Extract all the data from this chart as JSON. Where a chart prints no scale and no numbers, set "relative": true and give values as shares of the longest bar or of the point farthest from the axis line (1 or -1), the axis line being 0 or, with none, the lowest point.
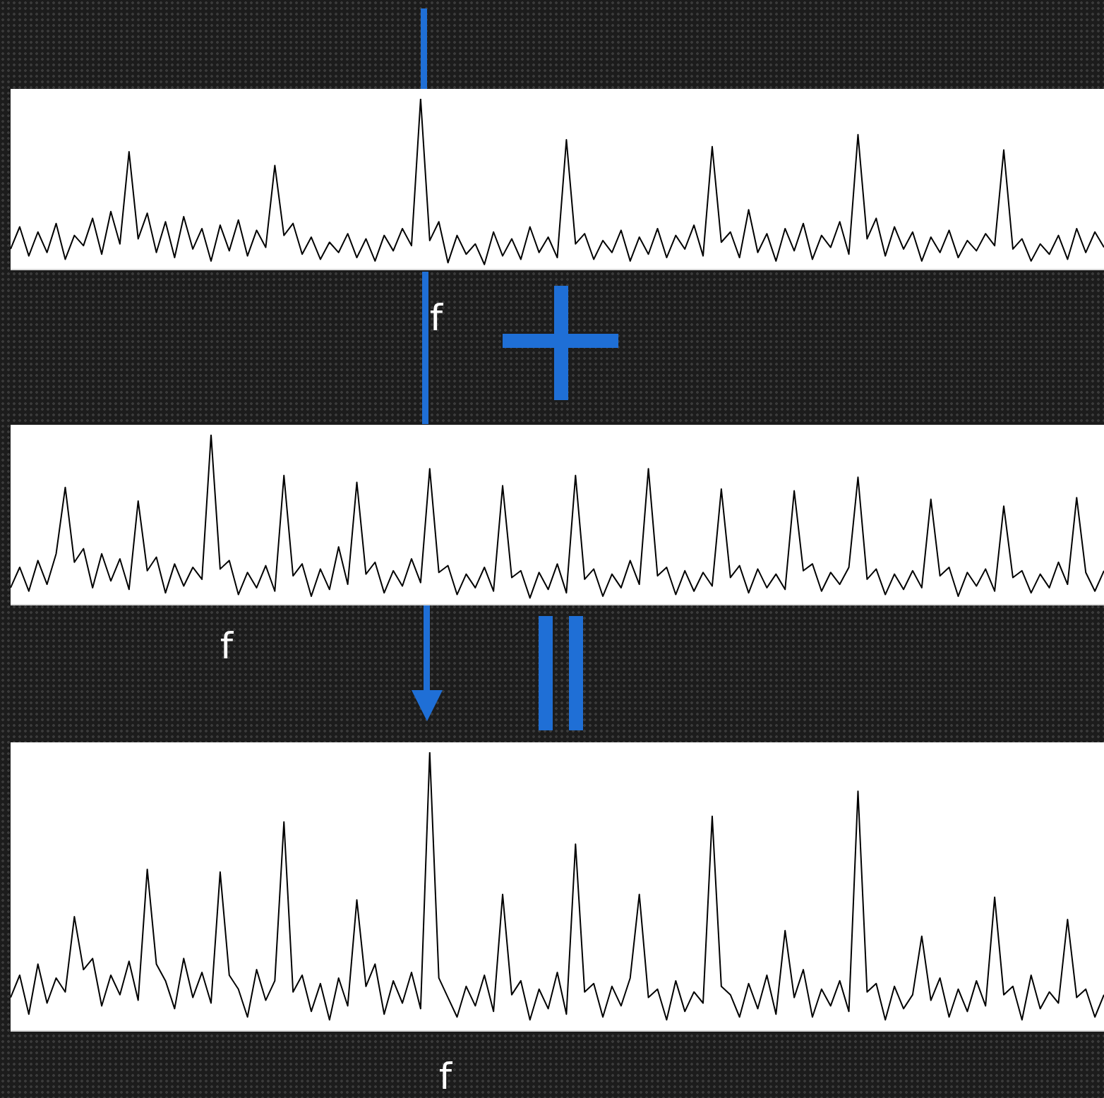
{
  "chart_data": [
    {
      "type": "line",
      "relative": true,
      "categories": [
        null,
        null,
        null,
        null,
        null,
        null,
        null,
        null,
        null,
        null,
        null,
        null,
        null,
        null,
        null,
        null,
        null,
        null,
        null,
        null,
        null,
        null,
        null,
        null,
        null,
        null,
        null,
        null,
        null,
        null,
        null,
        null,
        null,
        null,
        null,
        null,
        null,
        null,
        null,
        null,
        null,
        null,
        null,
        null,
        null,
        null,
        null,
        null,
        null,
        null,
        null,
        null,
        null,
        null,
        null,
        null,
        null,
        null,
        null,
        null,
        null,
        null,
        null,
        null,
        null,
        null,
        null,
        null,
        null,
        null,
        null,
        null,
        null,
        null,
        null,
        null,
        null,
        null,
        null,
        null,
        null,
        null,
        null,
        null,
        null,
        null,
        null,
        null,
        null,
        null,
        null,
        null,
        null,
        null,
        null,
        null,
        null,
        null,
        null,
        null,
        null,
        null,
        null,
        null,
        null,
        null,
        null,
        null,
        null,
        null,
        null,
        null,
        null,
        null,
        null,
        null,
        null,
        null,
        null,
        null,
        null
      ],
      "annotations": [
        "f"
      ],
      "color": "#000000",
      "values": [
        0.12,
        0.25,
        0.08,
        0.22,
        0.1,
        0.27,
        0.06,
        0.2,
        0.14,
        0.3,
        0.09,
        0.34,
        0.15,
        0.69,
        0.18,
        0.33,
        0.1,
        0.28,
        0.07,
        0.31,
        0.12,
        0.24,
        0.05,
        0.26,
        0.11,
        0.29,
        0.08,
        0.23,
        0.13,
        0.61,
        0.2,
        0.27,
        0.09,
        0.19,
        0.06,
        0.16,
        0.1,
        0.21,
        0.07,
        0.18,
        0.05,
        0.2,
        0.11,
        0.24,
        0.14,
        1,
        0.17,
        0.28,
        0.04,
        0.2,
        0.09,
        0.15,
        0.03,
        0.22,
        0.08,
        0.18,
        0.06,
        0.25,
        0.1,
        0.19,
        0.07,
        0.76,
        0.15,
        0.21,
        0.06,
        0.17,
        0.1,
        0.23,
        0.05,
        0.19,
        0.09,
        0.24,
        0.07,
        0.2,
        0.12,
        0.26,
        0.08,
        0.72,
        0.16,
        0.22,
        0.07,
        0.35,
        0.1,
        0.21,
        0.05,
        0.24,
        0.11,
        0.27,
        0.06,
        0.2,
        0.13,
        0.28,
        0.09,
        0.79,
        0.18,
        0.3,
        0.08,
        0.25,
        0.12,
        0.22,
        0.05,
        0.19,
        0.1,
        0.23,
        0.07,
        0.17,
        0.11,
        0.21,
        0.14,
        0.7,
        0.12,
        0.18,
        0.05,
        0.15,
        0.09,
        0.2,
        0.06,
        0.24,
        0.1,
        0.22,
        0.13
      ]
    },
    {
      "type": "line",
      "relative": true,
      "categories": [
        null,
        null,
        null,
        null,
        null,
        null,
        null,
        null,
        null,
        null,
        null,
        null,
        null,
        null,
        null,
        null,
        null,
        null,
        null,
        null,
        null,
        null,
        null,
        null,
        null,
        null,
        null,
        null,
        null,
        null,
        null,
        null,
        null,
        null,
        null,
        null,
        null,
        null,
        null,
        null,
        null,
        null,
        null,
        null,
        null,
        null,
        null,
        null,
        null,
        null,
        null,
        null,
        null,
        null,
        null,
        null,
        null,
        null,
        null,
        null,
        null,
        null,
        null,
        null,
        null,
        null,
        null,
        null,
        null,
        null,
        null,
        null,
        null,
        null,
        null,
        null,
        null,
        null,
        null,
        null,
        null,
        null,
        null,
        null,
        null,
        null,
        null,
        null,
        null,
        null,
        null,
        null,
        null,
        null,
        null,
        null,
        null,
        null,
        null,
        null,
        null,
        null,
        null,
        null,
        null,
        null,
        null,
        null,
        null,
        null,
        null,
        null,
        null,
        null,
        null,
        null,
        null,
        null,
        null,
        null,
        null
      ],
      "annotations": [
        "f"
      ],
      "color": "#000000",
      "values": [
        0.1,
        0.22,
        0.08,
        0.26,
        0.12,
        0.3,
        0.69,
        0.25,
        0.33,
        0.1,
        0.3,
        0.14,
        0.27,
        0.09,
        0.61,
        0.2,
        0.28,
        0.07,
        0.24,
        0.11,
        0.22,
        0.15,
        1,
        0.21,
        0.26,
        0.06,
        0.19,
        0.1,
        0.23,
        0.08,
        0.76,
        0.17,
        0.24,
        0.05,
        0.21,
        0.09,
        0.34,
        0.12,
        0.72,
        0.18,
        0.25,
        0.07,
        0.2,
        0.11,
        0.27,
        0.13,
        0.8,
        0.19,
        0.23,
        0.06,
        0.18,
        0.1,
        0.22,
        0.08,
        0.7,
        0.16,
        0.2,
        0.04,
        0.19,
        0.09,
        0.24,
        0.07,
        0.76,
        0.15,
        0.21,
        0.05,
        0.18,
        0.1,
        0.26,
        0.12,
        0.8,
        0.17,
        0.22,
        0.06,
        0.2,
        0.08,
        0.19,
        0.11,
        0.68,
        0.16,
        0.23,
        0.07,
        0.21,
        0.1,
        0.18,
        0.09,
        0.67,
        0.2,
        0.24,
        0.08,
        0.19,
        0.12,
        0.22,
        0.75,
        0.15,
        0.21,
        0.06,
        0.18,
        0.09,
        0.2,
        0.1,
        0.62,
        0.17,
        0.22,
        0.05,
        0.19,
        0.11,
        0.21,
        0.08,
        0.58,
        0.16,
        0.2,
        0.07,
        0.18,
        0.1,
        0.25,
        0.12,
        0.63,
        0.19,
        0.08,
        0.2
      ]
    },
    {
      "type": "line",
      "relative": true,
      "categories": [
        null,
        null,
        null,
        null,
        null,
        null,
        null,
        null,
        null,
        null,
        null,
        null,
        null,
        null,
        null,
        null,
        null,
        null,
        null,
        null,
        null,
        null,
        null,
        null,
        null,
        null,
        null,
        null,
        null,
        null,
        null,
        null,
        null,
        null,
        null,
        null,
        null,
        null,
        null,
        null,
        null,
        null,
        null,
        null,
        null,
        null,
        null,
        null,
        null,
        null,
        null,
        null,
        null,
        null,
        null,
        null,
        null,
        null,
        null,
        null,
        null,
        null,
        null,
        null,
        null,
        null,
        null,
        null,
        null,
        null,
        null,
        null,
        null,
        null,
        null,
        null,
        null,
        null,
        null,
        null,
        null,
        null,
        null,
        null,
        null,
        null,
        null,
        null,
        null,
        null,
        null,
        null,
        null,
        null,
        null,
        null,
        null,
        null,
        null,
        null,
        null,
        null,
        null,
        null,
        null,
        null,
        null,
        null,
        null,
        null,
        null,
        null,
        null,
        null,
        null,
        null,
        null,
        null,
        null,
        null,
        null
      ],
      "annotations": [
        "f"
      ],
      "color": "#000000",
      "values": [
        0.12,
        0.2,
        0.06,
        0.24,
        0.1,
        0.19,
        0.14,
        0.41,
        0.22,
        0.26,
        0.09,
        0.2,
        0.13,
        0.25,
        0.11,
        0.58,
        0.24,
        0.18,
        0.08,
        0.26,
        0.12,
        0.21,
        0.1,
        0.57,
        0.2,
        0.15,
        0.05,
        0.22,
        0.11,
        0.18,
        0.75,
        0.14,
        0.2,
        0.07,
        0.17,
        0.04,
        0.19,
        0.09,
        0.47,
        0.16,
        0.24,
        0.06,
        0.18,
        0.1,
        0.21,
        0.08,
        1,
        0.19,
        0.12,
        0.05,
        0.16,
        0.09,
        0.2,
        0.07,
        0.49,
        0.13,
        0.18,
        0.04,
        0.15,
        0.08,
        0.21,
        0.06,
        0.67,
        0.14,
        0.17,
        0.05,
        0.16,
        0.09,
        0.19,
        0.49,
        0.12,
        0.15,
        0.04,
        0.18,
        0.07,
        0.14,
        0.1,
        0.77,
        0.16,
        0.13,
        0.05,
        0.17,
        0.08,
        0.2,
        0.06,
        0.36,
        0.12,
        0.22,
        0.05,
        0.15,
        0.09,
        0.18,
        0.07,
        0.86,
        0.14,
        0.17,
        0.04,
        0.16,
        0.08,
        0.13,
        0.34,
        0.11,
        0.19,
        0.05,
        0.15,
        0.07,
        0.18,
        0.09,
        0.48,
        0.13,
        0.16,
        0.04,
        0.2,
        0.08,
        0.14,
        0.1,
        0.4,
        0.12,
        0.15,
        0.05,
        0.13
      ]
    }
  ]
}
